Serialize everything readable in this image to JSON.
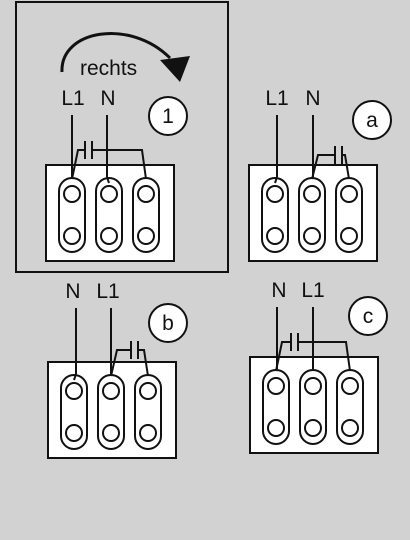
{
  "diagram": {
    "colors": {
      "background": "#d2d2d2",
      "stroke": "#111111",
      "fill": "#ffffff"
    },
    "rotation_label": "rechts",
    "panels": [
      {
        "id": "1",
        "badge": "1",
        "labels": [
          "L1",
          "N"
        ],
        "framed": true,
        "capacitor_between": "terminals 1-3"
      },
      {
        "id": "a",
        "badge": "a",
        "labels": [
          "L1",
          "N"
        ],
        "framed": false,
        "capacitor_between": "terminals 2-3"
      },
      {
        "id": "b",
        "badge": "b",
        "labels": [
          "N",
          "L1"
        ],
        "framed": false,
        "capacitor_between": "terminals 2-3"
      },
      {
        "id": "c",
        "badge": "c",
        "labels": [
          "N",
          "L1"
        ],
        "framed": false,
        "capacitor_between": "terminals 1-3"
      }
    ]
  }
}
